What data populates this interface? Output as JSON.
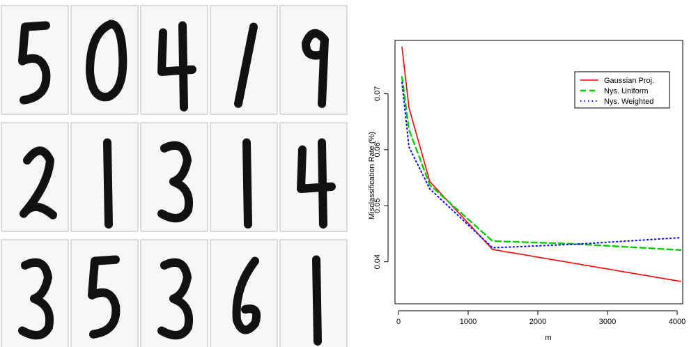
{
  "digits_panel": {
    "rows": [
      [
        "5",
        "0",
        "4",
        "1",
        "9"
      ],
      [
        "2",
        "1",
        "3",
        "1",
        "4"
      ],
      [
        "3",
        "5",
        "3",
        "6",
        "1"
      ]
    ]
  },
  "chart_data": {
    "type": "line",
    "title": "",
    "xlabel": "m",
    "ylabel": "Misclassification Rate (%)",
    "xlim": [
      -50,
      4080
    ],
    "ylim": [
      0.0325,
      0.0795
    ],
    "xticks": [
      0,
      1000,
      2000,
      3000,
      4000
    ],
    "yticks": [
      0.04,
      0.05,
      0.06,
      0.07
    ],
    "ytick_labels": [
      "0.04",
      "0.05",
      "0.06",
      "0.07"
    ],
    "grid": false,
    "legend_position": "top-right",
    "series": [
      {
        "name": "Gaussian Proj.",
        "color": "#ff0000",
        "dash": "solid",
        "x": [
          50,
          150,
          450,
          1350,
          4050
        ],
        "y": [
          0.0783,
          0.0675,
          0.0543,
          0.0422,
          0.0365
        ]
      },
      {
        "name": "Nys. Uniform",
        "color": "#00cc00",
        "dash": "dashed",
        "x": [
          50,
          150,
          450,
          1350,
          2500,
          4050
        ],
        "y": [
          0.073,
          0.0636,
          0.0537,
          0.0437,
          0.0432,
          0.0421
        ]
      },
      {
        "name": "Nys. Weighted",
        "color": "#0000ff",
        "dash": "dotted",
        "x": [
          50,
          150,
          450,
          1350,
          2500,
          4050
        ],
        "y": [
          0.072,
          0.0605,
          0.053,
          0.0425,
          0.0431,
          0.0443
        ]
      }
    ]
  }
}
